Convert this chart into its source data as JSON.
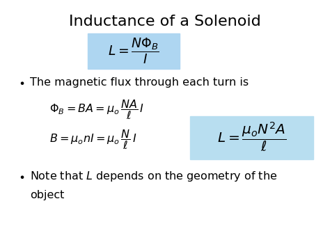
{
  "title": "Inductance of a Solenoid",
  "title_fontsize": 16,
  "bg_color": "#ffffff",
  "box1_color": "#aed6f1",
  "box2_color": "#b8def0",
  "formula1": "$L = \\dfrac{N\\Phi_B}{I}$",
  "formula2": "$\\Phi_B = BA = \\mu_o\\,\\dfrac{NA}{\\ell}\\,I$",
  "formula3": "$B = \\mu_o nI = \\mu_o\\,\\dfrac{N}{\\ell}\\,I$",
  "formula4": "$L = \\dfrac{\\mu_o N^2 A}{\\ell}$",
  "bullet1_text": "The magnetic flux through each turn is",
  "bullet2_text1": "Note that $L$ depends on the geometry of the",
  "bullet2_text2": "object",
  "text_fontsize": 11.5,
  "formula_fontsize": 11.5,
  "formula_large_fontsize": 12.5
}
